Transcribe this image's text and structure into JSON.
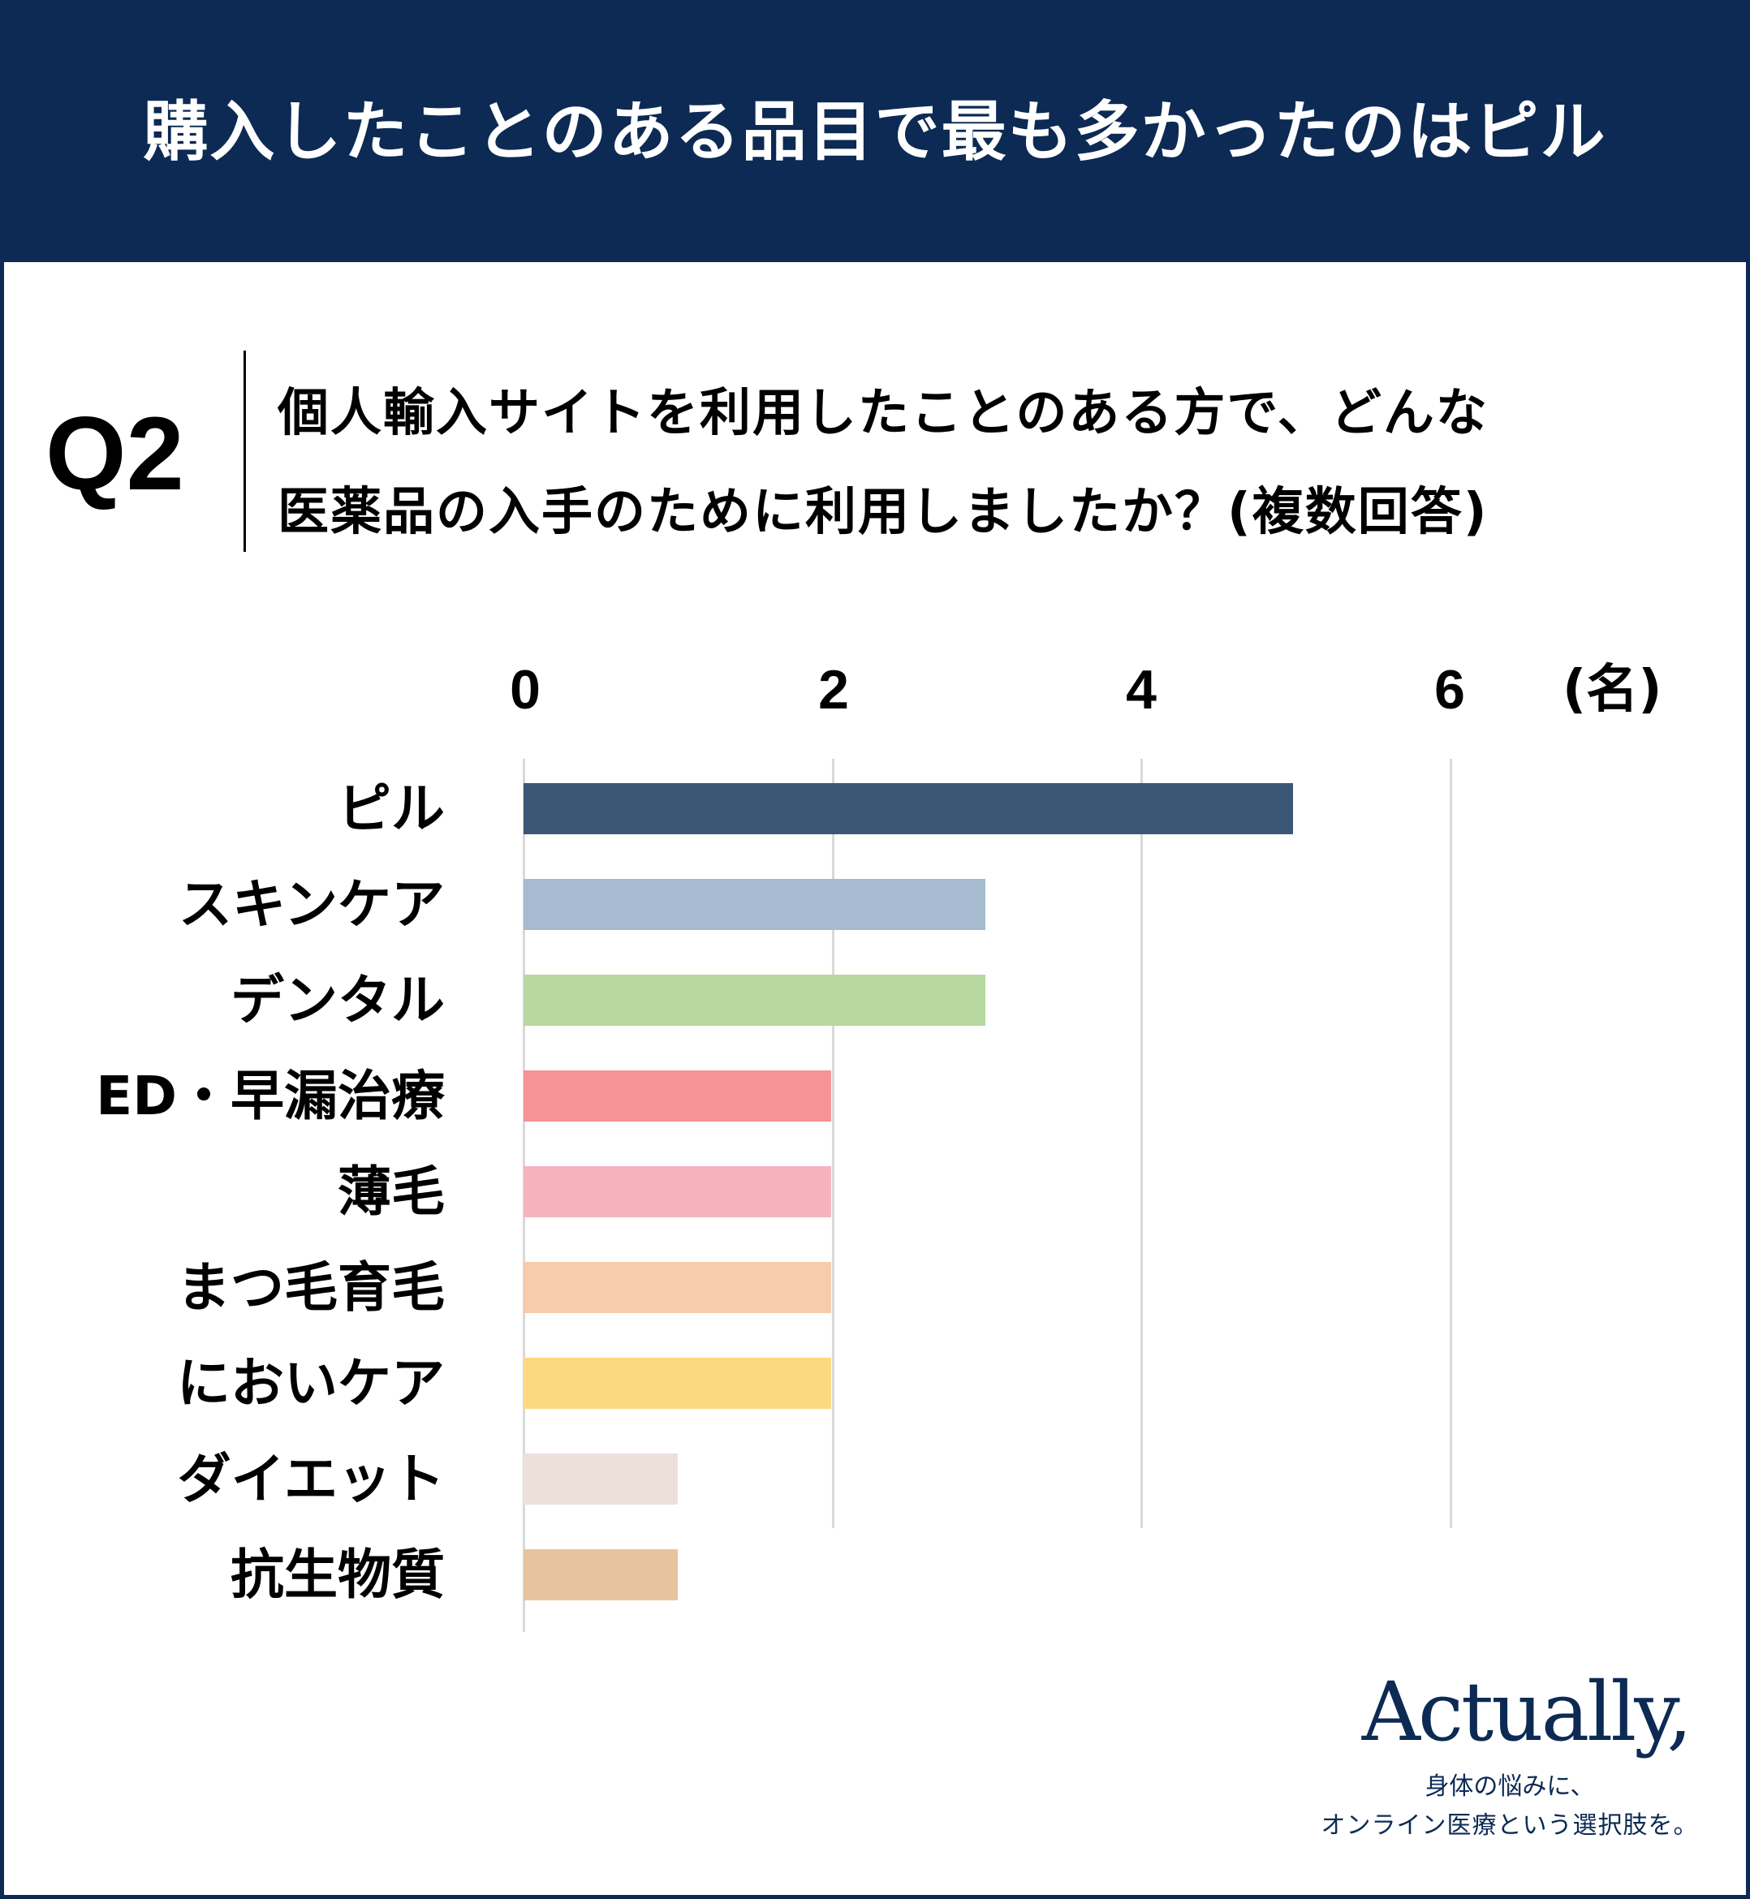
{
  "header": {
    "title": "購入したことのある品目で最も多かったのはピル"
  },
  "question": {
    "label": "Q2",
    "line1": "個人輸入サイトを利用したことのある方で、どんな",
    "line2": "医薬品の入手のために利用しましたか？(複数回答)"
  },
  "axis": {
    "ticks": [
      "0",
      "2",
      "4",
      "6"
    ],
    "unit": "(名)"
  },
  "colors": {
    "frame": "#0c2a54",
    "grid": "#d9d9d9"
  },
  "chart_data": {
    "type": "bar",
    "orientation": "horizontal",
    "title": "個人輸入サイトを利用したことのある方で、どんな医薬品の入手のために利用しましたか？(複数回答)",
    "xlabel": "(名)",
    "ylabel": "",
    "xlim": [
      0,
      6
    ],
    "xticks": [
      0,
      2,
      4,
      6
    ],
    "grid": true,
    "legend": null,
    "categories": [
      "ピル",
      "スキンケア",
      "デンタル",
      "ED・早漏治療",
      "薄毛",
      "まつ毛育毛",
      "においケア",
      "ダイエット",
      "抗生物質"
    ],
    "values": [
      5,
      3,
      3,
      2,
      2,
      2,
      2,
      1,
      1
    ],
    "bar_colors": [
      "#3c5675",
      "#a7bbd0",
      "#b7d8a0",
      "#f59396",
      "#f7b3bd",
      "#f7cbab",
      "#fcd87f",
      "#ede0db",
      "#e7c49f"
    ]
  },
  "logo": {
    "brand": "Actually,",
    "tagline1": "身体の悩みに、",
    "tagline2": "オンライン医療という選択肢を。"
  }
}
